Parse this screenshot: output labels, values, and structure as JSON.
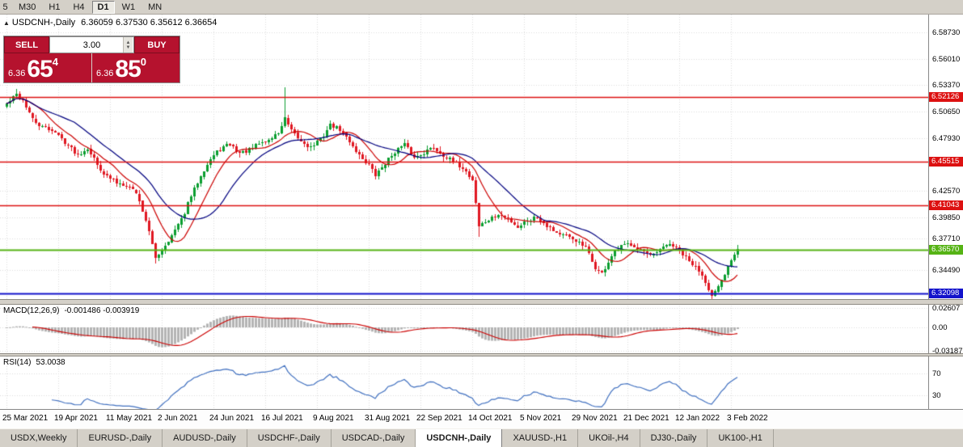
{
  "toolbar": {
    "timeframes": [
      "5",
      "M30",
      "H1",
      "H4",
      "D1",
      "W1",
      "MN"
    ],
    "active": "D1"
  },
  "chart": {
    "title": "USDCNH-,Daily",
    "ohlc_text": "6.36059 6.37530 6.35612 6.36654"
  },
  "trade_panel": {
    "sell_label": "SELL",
    "buy_label": "BUY",
    "lot_size": "3.00",
    "sell_price_prefix": "6.36",
    "sell_price_big": "65",
    "sell_price_sup": "4",
    "buy_price_prefix": "6.36",
    "buy_price_big": "85",
    "buy_price_sup": "0"
  },
  "price_axis": {
    "labels": [
      {
        "text": "6.58730",
        "value": 6.5873
      },
      {
        "text": "6.56010",
        "value": 6.5601
      },
      {
        "text": "6.53370",
        "value": 6.5337
      },
      {
        "text": "6.50650",
        "value": 6.5065
      },
      {
        "text": "6.47930",
        "value": 6.4793
      },
      {
        "text": "6.42570",
        "value": 6.4257
      },
      {
        "text": "6.39850",
        "value": 6.3985
      },
      {
        "text": "6.37710",
        "value": 6.3771
      },
      {
        "text": "6.34490",
        "value": 6.3449
      }
    ],
    "badges": [
      {
        "text": "6.52126",
        "value": 6.52126,
        "color": "#dd1111"
      },
      {
        "text": "6.45515",
        "value": 6.45515,
        "color": "#dd1111"
      },
      {
        "text": "6.41043",
        "value": 6.41043,
        "color": "#dd1111"
      },
      {
        "text": "6.36570",
        "value": 6.3657,
        "color": "#55b314"
      },
      {
        "text": "6.32098",
        "value": 6.32098,
        "color": "#1313cb"
      }
    ]
  },
  "indicators": {
    "macd": {
      "label": "MACD(12,26,9)",
      "values": "-0.001486 -0.003919"
    },
    "rsi": {
      "label": "RSI(14)",
      "value": "53.0038"
    }
  },
  "tabs": [
    {
      "label": "USDX,Weekly"
    },
    {
      "label": "EURUSD-,Daily"
    },
    {
      "label": "AUDUSD-,Daily"
    },
    {
      "label": "USDCHF-,Daily"
    },
    {
      "label": "USDCAD-,Daily"
    },
    {
      "label": "USDCNH-,Daily"
    },
    {
      "label": "XAUUSD-,H1"
    },
    {
      "label": "UKOil-,H4"
    },
    {
      "label": "DJ30-,Daily"
    },
    {
      "label": "UK100-,H1"
    }
  ],
  "active_tab_index": 5,
  "chart_data": {
    "type": "candlestick",
    "symbol": "USDCNH-",
    "period": "Daily",
    "current_bar": {
      "open": 6.36059,
      "high": 6.3753,
      "low": 6.35612,
      "close": 6.36654
    },
    "bid": 6.36654,
    "ask": 6.3685,
    "price_range": {
      "top": 6.5996,
      "bottom": 6.3168
    },
    "hlines": [
      {
        "price": 6.52126,
        "color": "#dd1111",
        "kind": "resistance"
      },
      {
        "price": 6.45515,
        "color": "#dd1111",
        "kind": "resistance"
      },
      {
        "price": 6.41043,
        "color": "#dd1111",
        "kind": "resistance"
      },
      {
        "price": 6.3657,
        "color": "#55b314",
        "kind": "current"
      },
      {
        "price": 6.32098,
        "color": "#1313cb",
        "kind": "support"
      }
    ],
    "candle_colors": {
      "up": "#0b9e30",
      "down": "#e01822"
    },
    "moving_averages": [
      {
        "color": "#cc0000",
        "period": 10
      },
      {
        "color": "#00007f",
        "period": 22
      }
    ],
    "candles": {
      "count": 227,
      "close_anchors": [
        [
          0,
          6.514
        ],
        [
          3,
          6.524
        ],
        [
          5,
          6.518
        ],
        [
          8,
          6.498
        ],
        [
          11,
          6.49
        ],
        [
          14,
          6.488
        ],
        [
          16,
          6.482
        ],
        [
          19,
          6.472
        ],
        [
          22,
          6.462
        ],
        [
          25,
          6.47
        ],
        [
          28,
          6.452
        ],
        [
          31,
          6.44
        ],
        [
          34,
          6.434
        ],
        [
          37,
          6.432
        ],
        [
          40,
          6.424
        ],
        [
          43,
          6.396
        ],
        [
          46,
          6.357
        ],
        [
          48,
          6.366
        ],
        [
          51,
          6.38
        ],
        [
          54,
          6.396
        ],
        [
          57,
          6.42
        ],
        [
          60,
          6.442
        ],
        [
          63,
          6.458
        ],
        [
          66,
          6.468
        ],
        [
          69,
          6.473
        ],
        [
          72,
          6.464
        ],
        [
          75,
          6.467
        ],
        [
          78,
          6.474
        ],
        [
          81,
          6.477
        ],
        [
          84,
          6.485
        ],
        [
          86,
          6.499
        ],
        [
          88,
          6.486
        ],
        [
          91,
          6.476
        ],
        [
          94,
          6.47
        ],
        [
          97,
          6.478
        ],
        [
          100,
          6.493
        ],
        [
          103,
          6.488
        ],
        [
          106,
          6.476
        ],
        [
          109,
          6.462
        ],
        [
          112,
          6.452
        ],
        [
          114,
          6.441
        ],
        [
          117,
          6.454
        ],
        [
          120,
          6.466
        ],
        [
          123,
          6.473
        ],
        [
          126,
          6.459
        ],
        [
          129,
          6.465
        ],
        [
          132,
          6.47
        ],
        [
          135,
          6.462
        ],
        [
          138,
          6.455
        ],
        [
          141,
          6.449
        ],
        [
          144,
          6.437
        ],
        [
          146,
          6.39
        ],
        [
          149,
          6.396
        ],
        [
          152,
          6.401
        ],
        [
          155,
          6.397
        ],
        [
          158,
          6.389
        ],
        [
          161,
          6.396
        ],
        [
          164,
          6.399
        ],
        [
          167,
          6.391
        ],
        [
          170,
          6.383
        ],
        [
          173,
          6.379
        ],
        [
          176,
          6.375
        ],
        [
          179,
          6.367
        ],
        [
          182,
          6.347
        ],
        [
          184,
          6.341
        ],
        [
          187,
          6.359
        ],
        [
          190,
          6.369
        ],
        [
          193,
          6.372
        ],
        [
          196,
          6.366
        ],
        [
          199,
          6.358
        ],
        [
          202,
          6.365
        ],
        [
          205,
          6.372
        ],
        [
          208,
          6.364
        ],
        [
          211,
          6.353
        ],
        [
          214,
          6.345
        ],
        [
          216,
          6.334
        ],
        [
          218,
          6.318
        ],
        [
          220,
          6.326
        ],
        [
          222,
          6.34
        ],
        [
          224,
          6.356
        ],
        [
          226,
          6.3665
        ]
      ],
      "extremes": {
        "3": {
          "high": 6.5295
        },
        "46": {
          "low": 6.3515
        },
        "86": {
          "high": 6.5315
        },
        "146": {
          "low": 6.379
        },
        "218": {
          "low": 6.3122
        }
      }
    },
    "macd": {
      "fast": 12,
      "slow": 26,
      "signal": 9,
      "last_main": -0.001486,
      "last_signal": -0.003919,
      "axis": [
        {
          "text": "0.02607",
          "value": 0.02607
        },
        {
          "text": "0.00",
          "value": 0
        },
        {
          "text": "-0.031872",
          "value": -0.031872
        }
      ]
    },
    "rsi": {
      "period": 14,
      "last": 53.0038,
      "levels": [
        70,
        30
      ]
    },
    "x_ticks": [
      "25 Mar 2021",
      "19 Apr 2021",
      "11 May 2021",
      "2 Jun 2021",
      "24 Jun 2021",
      "16 Jul 2021",
      "9 Aug 2021",
      "31 Aug 2021",
      "22 Sep 2021",
      "14 Oct 2021",
      "5 Nov 2021",
      "29 Nov 2021",
      "21 Dec 2021",
      "12 Jan 2022",
      "3 Feb 2022"
    ]
  }
}
